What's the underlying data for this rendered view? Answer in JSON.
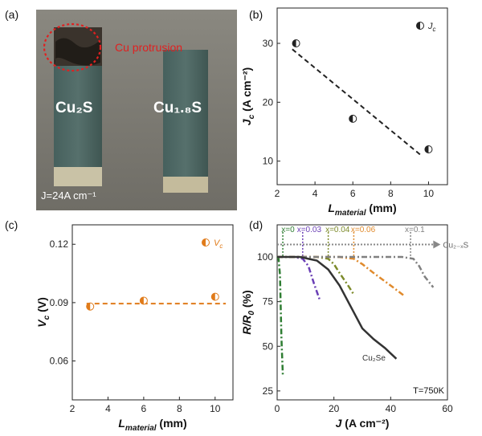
{
  "panels": {
    "a": "(a)",
    "b": "(b)",
    "c": "(c)",
    "d": "(d)"
  },
  "photo": {
    "protrusion_label": "Cu protrusion",
    "left_sample": "Cu₂S",
    "right_sample": "Cu₁.₈S",
    "current_label": "J=24A cm⁻¹",
    "colors": {
      "background": "#7d7b74",
      "bar": "#4f6663",
      "copper": "#3a332c",
      "ring": "#e02020",
      "label": "#ffffff"
    }
  },
  "chart_data": [
    {
      "id": "b",
      "type": "scatter",
      "xlabel": "L_material (mm)",
      "ylabel": "J_c (A cm⁻²)",
      "xlim": [
        2,
        11
      ],
      "ylim": [
        6,
        36
      ],
      "xticks": [
        2,
        4,
        6,
        8,
        10
      ],
      "yticks": [
        10,
        20,
        30
      ],
      "legend": "J_c",
      "legend_position": "top-right",
      "points": [
        {
          "x": 3,
          "y": 30
        },
        {
          "x": 6,
          "y": 17.2
        },
        {
          "x": 10,
          "y": 12
        }
      ],
      "fit_line": [
        {
          "x": 2.8,
          "y": 29
        },
        {
          "x": 9.6,
          "y": 11
        }
      ],
      "color": "#222222"
    },
    {
      "id": "c",
      "type": "scatter",
      "xlabel": "L_material (mm)",
      "ylabel": "V_c (V)",
      "xlim": [
        2,
        11
      ],
      "ylim": [
        0.04,
        0.13
      ],
      "xticks": [
        2,
        4,
        6,
        8,
        10
      ],
      "yticks": [
        0.06,
        0.09,
        0.12
      ],
      "legend": "V_c",
      "legend_position": "top-right",
      "points": [
        {
          "x": 3,
          "y": 0.088
        },
        {
          "x": 6,
          "y": 0.091
        },
        {
          "x": 10,
          "y": 0.093
        }
      ],
      "fit_line": [
        {
          "x": 2.8,
          "y": 0.0895
        },
        {
          "x": 10.6,
          "y": 0.0895
        }
      ],
      "color": "#e07b1a"
    },
    {
      "id": "d",
      "type": "line",
      "xlabel": "J (A cm⁻²)",
      "ylabel": "R/R_0 (%)",
      "xlim": [
        0,
        60
      ],
      "ylim": [
        20,
        118
      ],
      "xticks": [
        0,
        20,
        40,
        60
      ],
      "yticks": [
        25,
        50,
        75,
        100
      ],
      "annotation": "T=750K",
      "arrow_label": "Cu₂₋ₓS",
      "series": [
        {
          "name": "x=0",
          "color": "#2e7d32",
          "dash": "7,3,2,3",
          "x": [
            0,
            0.5,
            1,
            1.5,
            2
          ],
          "y": [
            100,
            99,
            90,
            55,
            34
          ]
        },
        {
          "name": "x=0.03",
          "color": "#6a3fb5",
          "dash": "7,3,2,3",
          "x": [
            0,
            6,
            9,
            11,
            13,
            15
          ],
          "y": [
            100,
            100,
            99,
            95,
            85,
            76
          ]
        },
        {
          "name": "x=0.04",
          "color": "#7c8a2a",
          "dash": "7,3,2,3",
          "x": [
            0,
            14,
            18,
            20,
            22,
            25,
            27
          ],
          "y": [
            100,
            100,
            99,
            96,
            91,
            84,
            79
          ]
        },
        {
          "name": "x=0.06",
          "color": "#e08a2c",
          "dash": "7,3,2,3",
          "x": [
            0,
            22,
            27,
            30,
            34,
            40,
            45
          ],
          "y": [
            100,
            100,
            99,
            96,
            91,
            84,
            78
          ]
        },
        {
          "name": "x=0.1",
          "color": "#808080",
          "dash": "7,3,2,3",
          "x": [
            0,
            44,
            48,
            50,
            52,
            55
          ],
          "y": [
            100,
            100,
            99,
            95,
            89,
            83
          ]
        },
        {
          "name": "Cu₂Se",
          "color": "#333333",
          "dash": "",
          "x": [
            0,
            8,
            14,
            18,
            22,
            26,
            30,
            34,
            38,
            40,
            42
          ],
          "y": [
            100,
            100,
            98,
            93,
            84,
            72,
            60,
            54,
            49,
            46,
            43
          ]
        }
      ],
      "series_labels": [
        {
          "text": "x=0",
          "x": 1.5,
          "y": 114,
          "color": "#2e7d32"
        },
        {
          "text": "x=0.03",
          "x": 7,
          "y": 114,
          "color": "#6a3fb5"
        },
        {
          "text": "x=0.04",
          "x": 17,
          "y": 114,
          "color": "#7c8a2a"
        },
        {
          "text": "x=0.06",
          "x": 26,
          "y": 114,
          "color": "#e08a2c"
        },
        {
          "text": "x=0.1",
          "x": 45,
          "y": 114,
          "color": "#808080"
        },
        {
          "text": "Cu₂Se",
          "x": 30,
          "y": 42,
          "color": "#333333"
        }
      ],
      "vlines": [
        {
          "x": 2,
          "color": "#2e7d32"
        },
        {
          "x": 9,
          "color": "#6a3fb5"
        },
        {
          "x": 18,
          "color": "#7c8a2a"
        },
        {
          "x": 27,
          "color": "#e08a2c"
        },
        {
          "x": 47,
          "color": "#808080"
        }
      ],
      "hline": {
        "y": 107,
        "x_end": 55,
        "color": "#888888"
      }
    }
  ]
}
